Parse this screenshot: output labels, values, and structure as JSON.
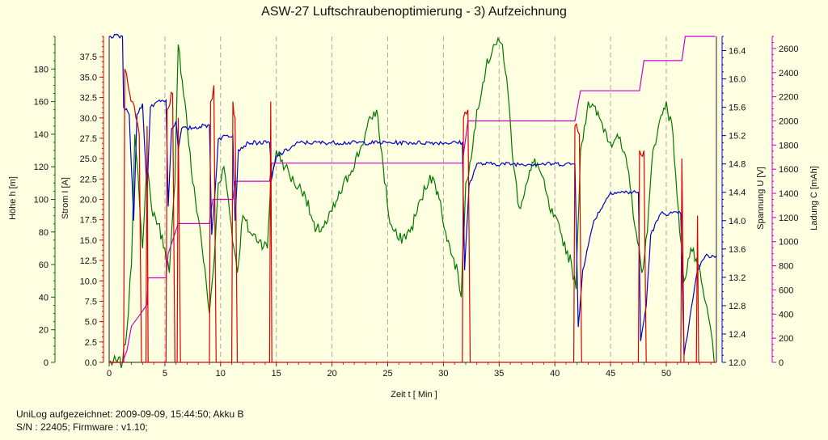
{
  "title": "ASW-27 Luftschraubenoptimierung - 3) Aufzeichnung",
  "footer": {
    "line1": "UniLog aufgezeichnet: 2009-09-09, 15:44:50; Akku B",
    "line2": "S/N : 22405; Firmware : v1.10;"
  },
  "colors": {
    "hoehe": "#007700",
    "strom": "#dd0000",
    "spannung": "#0000cc",
    "ladung": "#cc00cc",
    "background": "#ffffe1"
  },
  "chart_data": {
    "type": "line",
    "title": "ASW-27 Luftschraubenoptimierung - 3) Aufzeichnung",
    "xlabel": "Zeit  t  [ Min ]",
    "xlim": [
      0,
      54.5
    ],
    "xticks": [
      0,
      5,
      10,
      15,
      20,
      25,
      30,
      35,
      40,
      45,
      50
    ],
    "grid": "vertical dashed at x ticks",
    "axes": [
      {
        "id": "hoehe",
        "label": "Höhe  h  [m]",
        "min": 0,
        "max": 200,
        "ticks": [
          0,
          20,
          40,
          60,
          80,
          100,
          120,
          140,
          160,
          180
        ]
      },
      {
        "id": "strom",
        "label": "Strom  I  [A]",
        "min": 0,
        "max": 40,
        "ticks": [
          0.0,
          2.5,
          5.0,
          7.5,
          10.0,
          12.5,
          15.0,
          17.5,
          20.0,
          22.5,
          25.0,
          27.5,
          30.0,
          32.5,
          35.0,
          37.5
        ]
      },
      {
        "id": "spannung",
        "label": "Spannung  U  [V]",
        "min": 12.0,
        "max": 16.6,
        "ticks": [
          12.0,
          12.4,
          12.8,
          13.2,
          13.6,
          14.0,
          14.4,
          14.8,
          15.2,
          15.6,
          16.0,
          16.4
        ]
      },
      {
        "id": "ladung",
        "label": "Ladung  C  [mAh]",
        "min": 0,
        "max": 2700,
        "ticks": [
          0,
          200,
          400,
          600,
          800,
          1000,
          1200,
          1400,
          1600,
          1800,
          2000,
          2200,
          2400,
          2600
        ]
      }
    ],
    "series": [
      {
        "name": "Höhe",
        "axis": "hoehe",
        "points": [
          [
            0,
            0
          ],
          [
            1.2,
            0
          ],
          [
            1.6,
            20
          ],
          [
            2.0,
            60
          ],
          [
            2.3,
            140
          ],
          [
            2.6,
            115
          ],
          [
            3.0,
            70
          ],
          [
            3.4,
            120
          ],
          [
            3.8,
            95
          ],
          [
            4.4,
            85
          ],
          [
            5.0,
            70
          ],
          [
            5.4,
            55
          ],
          [
            5.9,
            110
          ],
          [
            6.2,
            195
          ],
          [
            6.8,
            160
          ],
          [
            7.5,
            110
          ],
          [
            8.2,
            80
          ],
          [
            9.0,
            30
          ],
          [
            9.4,
            60
          ],
          [
            9.8,
            110
          ],
          [
            10.3,
            120
          ],
          [
            10.7,
            100
          ],
          [
            11.2,
            70
          ],
          [
            11.5,
            55
          ],
          [
            12.0,
            90
          ],
          [
            12.6,
            80
          ],
          [
            13.5,
            75
          ],
          [
            14.2,
            70
          ],
          [
            14.5,
            110
          ],
          [
            15.0,
            130
          ],
          [
            15.8,
            120
          ],
          [
            16.6,
            110
          ],
          [
            17.5,
            105
          ],
          [
            18.5,
            80
          ],
          [
            19.5,
            85
          ],
          [
            20.5,
            100
          ],
          [
            21.5,
            115
          ],
          [
            22.5,
            130
          ],
          [
            23.5,
            150
          ],
          [
            24.0,
            155
          ],
          [
            24.6,
            120
          ],
          [
            25.2,
            85
          ],
          [
            26.0,
            75
          ],
          [
            27.0,
            80
          ],
          [
            28.0,
            100
          ],
          [
            28.8,
            115
          ],
          [
            29.5,
            105
          ],
          [
            30.2,
            80
          ],
          [
            30.8,
            65
          ],
          [
            31.3,
            55
          ],
          [
            31.6,
            40
          ],
          [
            32.0,
            110
          ],
          [
            32.5,
            125
          ],
          [
            33.0,
            155
          ],
          [
            33.8,
            180
          ],
          [
            34.5,
            195
          ],
          [
            35.3,
            195
          ],
          [
            35.8,
            165
          ],
          [
            36.3,
            120
          ],
          [
            36.8,
            95
          ],
          [
            37.5,
            110
          ],
          [
            38.2,
            125
          ],
          [
            38.8,
            115
          ],
          [
            39.5,
            95
          ],
          [
            40.5,
            80
          ],
          [
            41.5,
            60
          ],
          [
            41.9,
            45
          ],
          [
            42.3,
            130
          ],
          [
            43.0,
            160
          ],
          [
            44.0,
            150
          ],
          [
            45.0,
            135
          ],
          [
            45.6,
            140
          ],
          [
            46.5,
            120
          ],
          [
            47.3,
            80
          ],
          [
            47.8,
            55
          ],
          [
            48.3,
            80
          ],
          [
            48.8,
            130
          ],
          [
            49.3,
            145
          ],
          [
            50.0,
            160
          ],
          [
            50.6,
            140
          ],
          [
            51.2,
            80
          ],
          [
            51.6,
            50
          ],
          [
            52.2,
            70
          ],
          [
            52.8,
            60
          ],
          [
            53.4,
            40
          ],
          [
            54.0,
            20
          ],
          [
            54.3,
            0
          ]
        ]
      },
      {
        "name": "Strom",
        "axis": "strom",
        "points": [
          [
            0,
            0
          ],
          [
            1.3,
            0
          ],
          [
            1.4,
            36
          ],
          [
            1.7,
            34
          ],
          [
            2.1,
            32
          ],
          [
            2.4,
            30
          ],
          [
            2.7,
            28
          ],
          [
            2.9,
            0
          ],
          [
            3.3,
            0
          ],
          [
            3.4,
            29
          ],
          [
            3.5,
            0
          ],
          [
            5.1,
            0
          ],
          [
            5.2,
            31
          ],
          [
            5.7,
            33
          ],
          [
            5.9,
            0
          ],
          [
            6.1,
            0
          ],
          [
            6.2,
            30
          ],
          [
            6.4,
            0
          ],
          [
            9.0,
            0
          ],
          [
            9.1,
            32
          ],
          [
            9.4,
            34
          ],
          [
            9.6,
            0
          ],
          [
            11.0,
            0
          ],
          [
            11.1,
            32
          ],
          [
            11.3,
            30
          ],
          [
            11.5,
            0
          ],
          [
            14.4,
            0
          ],
          [
            14.5,
            32
          ],
          [
            14.6,
            0
          ],
          [
            31.7,
            0
          ],
          [
            31.8,
            30
          ],
          [
            32.2,
            31
          ],
          [
            32.4,
            0
          ],
          [
            41.7,
            0
          ],
          [
            41.8,
            29
          ],
          [
            42.2,
            28
          ],
          [
            42.4,
            0
          ],
          [
            47.5,
            0
          ],
          [
            47.6,
            26
          ],
          [
            48.0,
            26
          ],
          [
            48.2,
            0
          ],
          [
            51.3,
            0
          ],
          [
            51.4,
            25
          ],
          [
            51.6,
            0
          ],
          [
            52.7,
            0
          ],
          [
            52.8,
            18
          ],
          [
            52.9,
            0
          ],
          [
            54.4,
            0
          ]
        ]
      },
      {
        "name": "Spannung",
        "axis": "spannung",
        "points": [
          [
            0,
            16.6
          ],
          [
            1.2,
            16.6
          ],
          [
            1.3,
            15.6
          ],
          [
            1.8,
            15.5
          ],
          [
            2.2,
            14.0
          ],
          [
            2.5,
            15.5
          ],
          [
            3.0,
            15.65
          ],
          [
            3.4,
            14.4
          ],
          [
            3.7,
            15.6
          ],
          [
            4.5,
            15.7
          ],
          [
            5.1,
            15.7
          ],
          [
            5.3,
            14.2
          ],
          [
            5.6,
            15.3
          ],
          [
            6.0,
            15.4
          ],
          [
            6.2,
            15.0
          ],
          [
            6.5,
            15.3
          ],
          [
            7.0,
            15.3
          ],
          [
            9.0,
            15.35
          ],
          [
            9.2,
            13.8
          ],
          [
            9.5,
            14.4
          ],
          [
            9.8,
            15.15
          ],
          [
            10.5,
            15.2
          ],
          [
            11.1,
            15.2
          ],
          [
            11.3,
            14.0
          ],
          [
            11.6,
            15.0
          ],
          [
            12.5,
            15.1
          ],
          [
            14.4,
            15.1
          ],
          [
            14.6,
            14.6
          ],
          [
            15.0,
            14.9
          ],
          [
            17.0,
            15.1
          ],
          [
            25.0,
            15.1
          ],
          [
            31.7,
            15.1
          ],
          [
            31.9,
            13.3
          ],
          [
            32.3,
            14.5
          ],
          [
            33.0,
            14.8
          ],
          [
            41.8,
            14.8
          ],
          [
            42.1,
            12.5
          ],
          [
            42.5,
            13.3
          ],
          [
            43.5,
            14.0
          ],
          [
            45.0,
            14.4
          ],
          [
            47.5,
            14.4
          ],
          [
            47.7,
            12.3
          ],
          [
            48.2,
            12.8
          ],
          [
            48.6,
            13.8
          ],
          [
            49.5,
            14.1
          ],
          [
            51.3,
            14.1
          ],
          [
            51.6,
            12.1
          ],
          [
            52.0,
            12.5
          ],
          [
            52.8,
            13.3
          ],
          [
            53.5,
            13.5
          ],
          [
            54.5,
            13.5
          ]
        ]
      },
      {
        "name": "Ladung",
        "axis": "ladung",
        "points": [
          [
            0,
            0
          ],
          [
            1.2,
            0
          ],
          [
            1.6,
            100
          ],
          [
            2.0,
            300
          ],
          [
            2.8,
            400
          ],
          [
            3.4,
            480
          ],
          [
            3.5,
            700
          ],
          [
            5.1,
            700
          ],
          [
            5.3,
            900
          ],
          [
            6.2,
            1150
          ],
          [
            9.0,
            1150
          ],
          [
            9.3,
            1350
          ],
          [
            11.1,
            1350
          ],
          [
            11.3,
            1500
          ],
          [
            14.4,
            1500
          ],
          [
            14.6,
            1650
          ],
          [
            31.7,
            1650
          ],
          [
            32.2,
            2000
          ],
          [
            41.8,
            2000
          ],
          [
            42.3,
            2250
          ],
          [
            47.6,
            2250
          ],
          [
            48.0,
            2500
          ],
          [
            51.4,
            2500
          ],
          [
            51.7,
            2700
          ],
          [
            54.4,
            2700
          ]
        ]
      }
    ]
  }
}
